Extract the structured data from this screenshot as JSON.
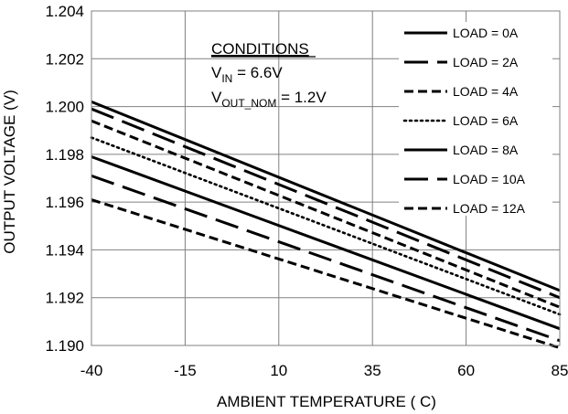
{
  "chart_data": {
    "type": "line",
    "title": "",
    "xlabel": "AMBIENT TEMPERATURE ( C)",
    "ylabel": "OUTPUT  VOLTAGE (V)",
    "xlim": [
      -40,
      85
    ],
    "ylim": [
      1.19,
      1.204
    ],
    "x_ticks": [
      "-40",
      "-15",
      "10",
      "35",
      "60",
      "85"
    ],
    "y_ticks": [
      "1.190",
      "1.192",
      "1.194",
      "1.196",
      "1.198",
      "1.200",
      "1.202",
      "1.204"
    ],
    "grid": true,
    "legend_position": "top-right",
    "annotation": {
      "heading": "CONDITIONS",
      "vin_label": "V",
      "vin_sub": "IN",
      "vin_value": " = 6.6V",
      "vout_label": "V",
      "vout_sub": "OUT_NOM",
      "vout_value": " = 1.2V"
    },
    "series": [
      {
        "name": "LOAD = 0A",
        "dash": "solid",
        "x": [
          -40,
          85
        ],
        "y": [
          1.2002,
          1.1923
        ]
      },
      {
        "name": "LOAD = 2A",
        "dash": "longdash",
        "x": [
          -40,
          85
        ],
        "y": [
          1.1999,
          1.192
        ]
      },
      {
        "name": "LOAD = 4A",
        "dash": "dash",
        "x": [
          -40,
          85
        ],
        "y": [
          1.1994,
          1.1916
        ]
      },
      {
        "name": "LOAD = 6A",
        "dash": "dot",
        "x": [
          -40,
          85
        ],
        "y": [
          1.1987,
          1.1913
        ]
      },
      {
        "name": "LOAD = 8A",
        "dash": "solid",
        "x": [
          -40,
          85
        ],
        "y": [
          1.1979,
          1.1907
        ]
      },
      {
        "name": "LOAD = 10A",
        "dash": "longdash",
        "x": [
          -40,
          85
        ],
        "y": [
          1.1971,
          1.1902
        ]
      },
      {
        "name": "LOAD = 12A",
        "dash": "dash",
        "x": [
          -40,
          85
        ],
        "y": [
          1.1961,
          1.1899
        ]
      }
    ]
  }
}
